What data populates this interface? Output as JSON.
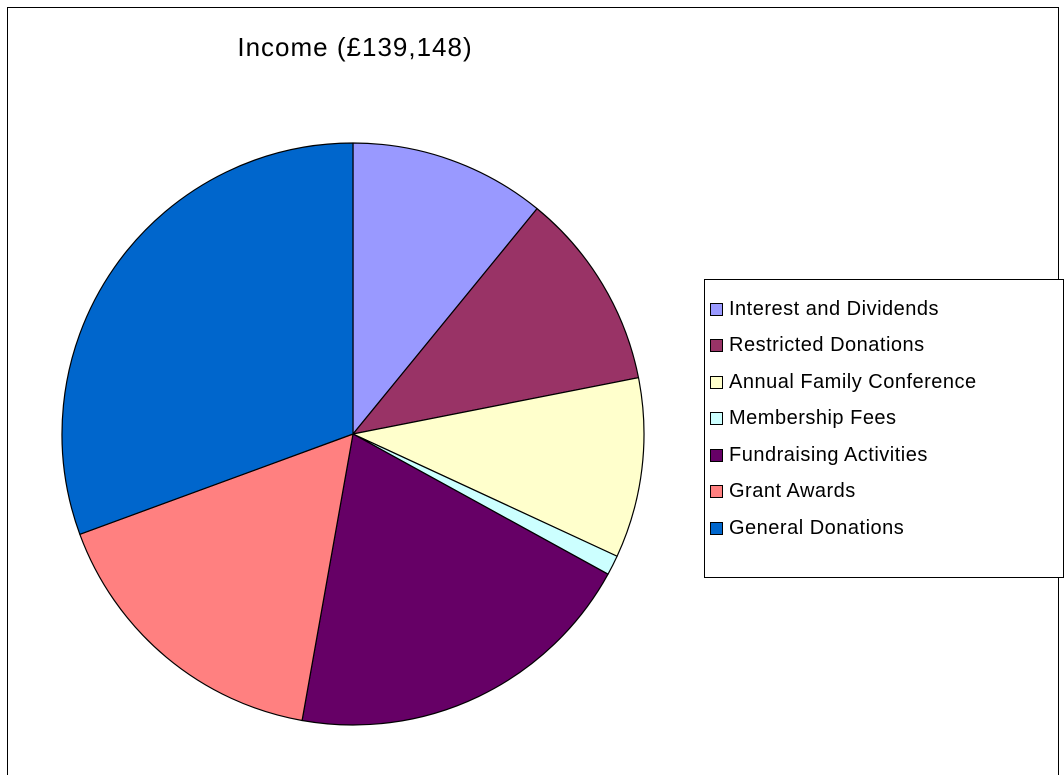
{
  "chart_data": {
    "type": "pie",
    "title": "Income (£139,148)",
    "legend_position": "right",
    "start_angle_deg": 0,
    "direction": "clockwise",
    "slices": [
      {
        "label": "Interest and Dividends",
        "value": 10.9,
        "color": "#9999FF"
      },
      {
        "label": "Restricted Donations",
        "value": 11.0,
        "color": "#993366"
      },
      {
        "label": "Annual Family Conference",
        "value": 10.0,
        "color": "#FFFFCC"
      },
      {
        "label": "Membership Fees",
        "value": 1.1,
        "color": "#CCFFFF"
      },
      {
        "label": "Fundraising Activities",
        "value": 19.8,
        "color": "#660066"
      },
      {
        "label": "Grant Awards",
        "value": 16.6,
        "color": "#FF8080"
      },
      {
        "label": "General Donations",
        "value": 30.6,
        "color": "#0066CC"
      }
    ]
  }
}
